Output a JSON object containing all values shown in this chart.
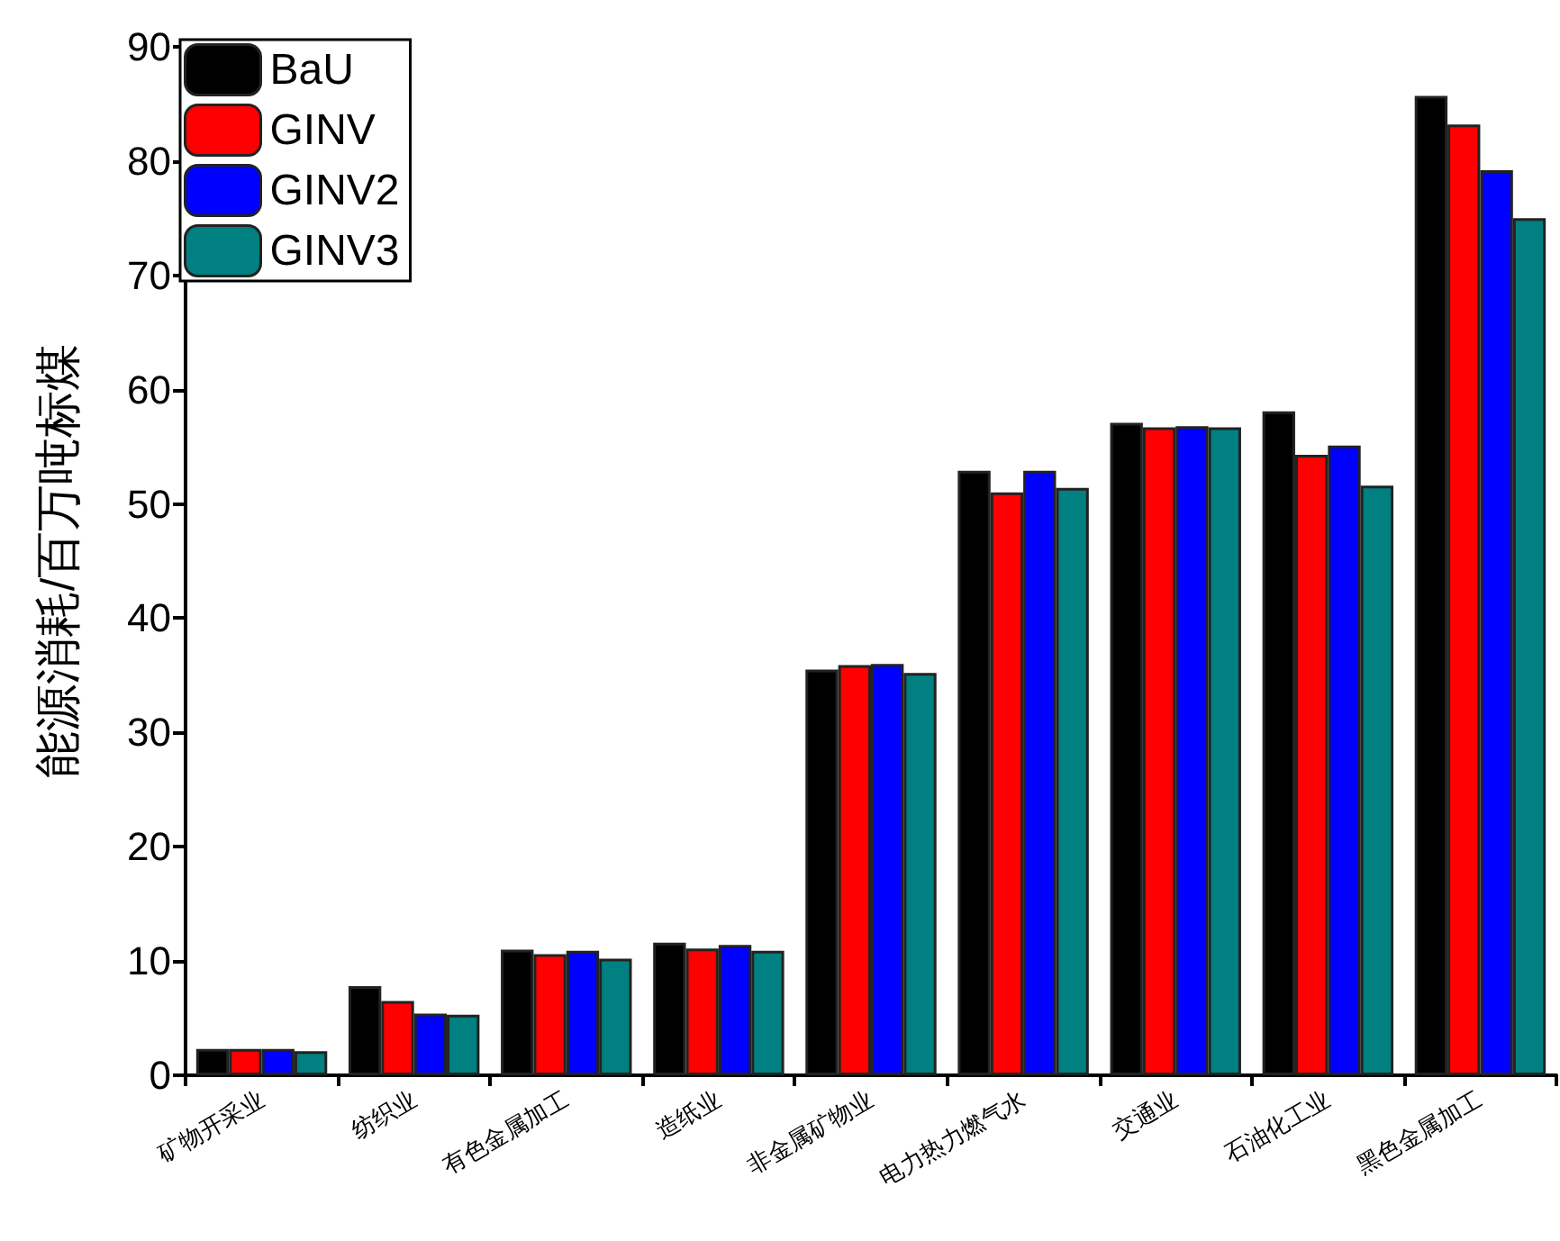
{
  "chart_data": {
    "type": "bar",
    "ylabel": "能源消耗/百万吨标煤",
    "categories": [
      "矿物开采业",
      "纺织业",
      "有色金属加工",
      "造纸业",
      "非金属矿物业",
      "电力热力燃气水",
      "交通业",
      "石油化工业",
      "黑色金属加工"
    ],
    "series": [
      {
        "name": "BaU",
        "color": "#000000",
        "values": [
          2.3,
          7.8,
          11.0,
          11.6,
          35.5,
          52.9,
          57.1,
          58.1,
          85.7
        ]
      },
      {
        "name": "GINV",
        "color": "#ff0000",
        "values": [
          2.3,
          6.5,
          10.6,
          11.1,
          35.9,
          51.0,
          56.7,
          54.3,
          83.2
        ]
      },
      {
        "name": "GINV2",
        "color": "#0000ff",
        "values": [
          2.3,
          5.4,
          10.9,
          11.4,
          36.0,
          52.9,
          56.8,
          55.1,
          79.2
        ]
      },
      {
        "name": "GINV3",
        "color": "#008080",
        "values": [
          2.1,
          5.3,
          10.2,
          10.9,
          35.2,
          51.4,
          56.7,
          51.6,
          75.0
        ]
      }
    ],
    "ylim": [
      0,
      90
    ],
    "yticks": [
      0,
      10,
      20,
      30,
      40,
      50,
      60,
      70,
      80,
      90
    ],
    "grid": false,
    "legend": "top left"
  }
}
